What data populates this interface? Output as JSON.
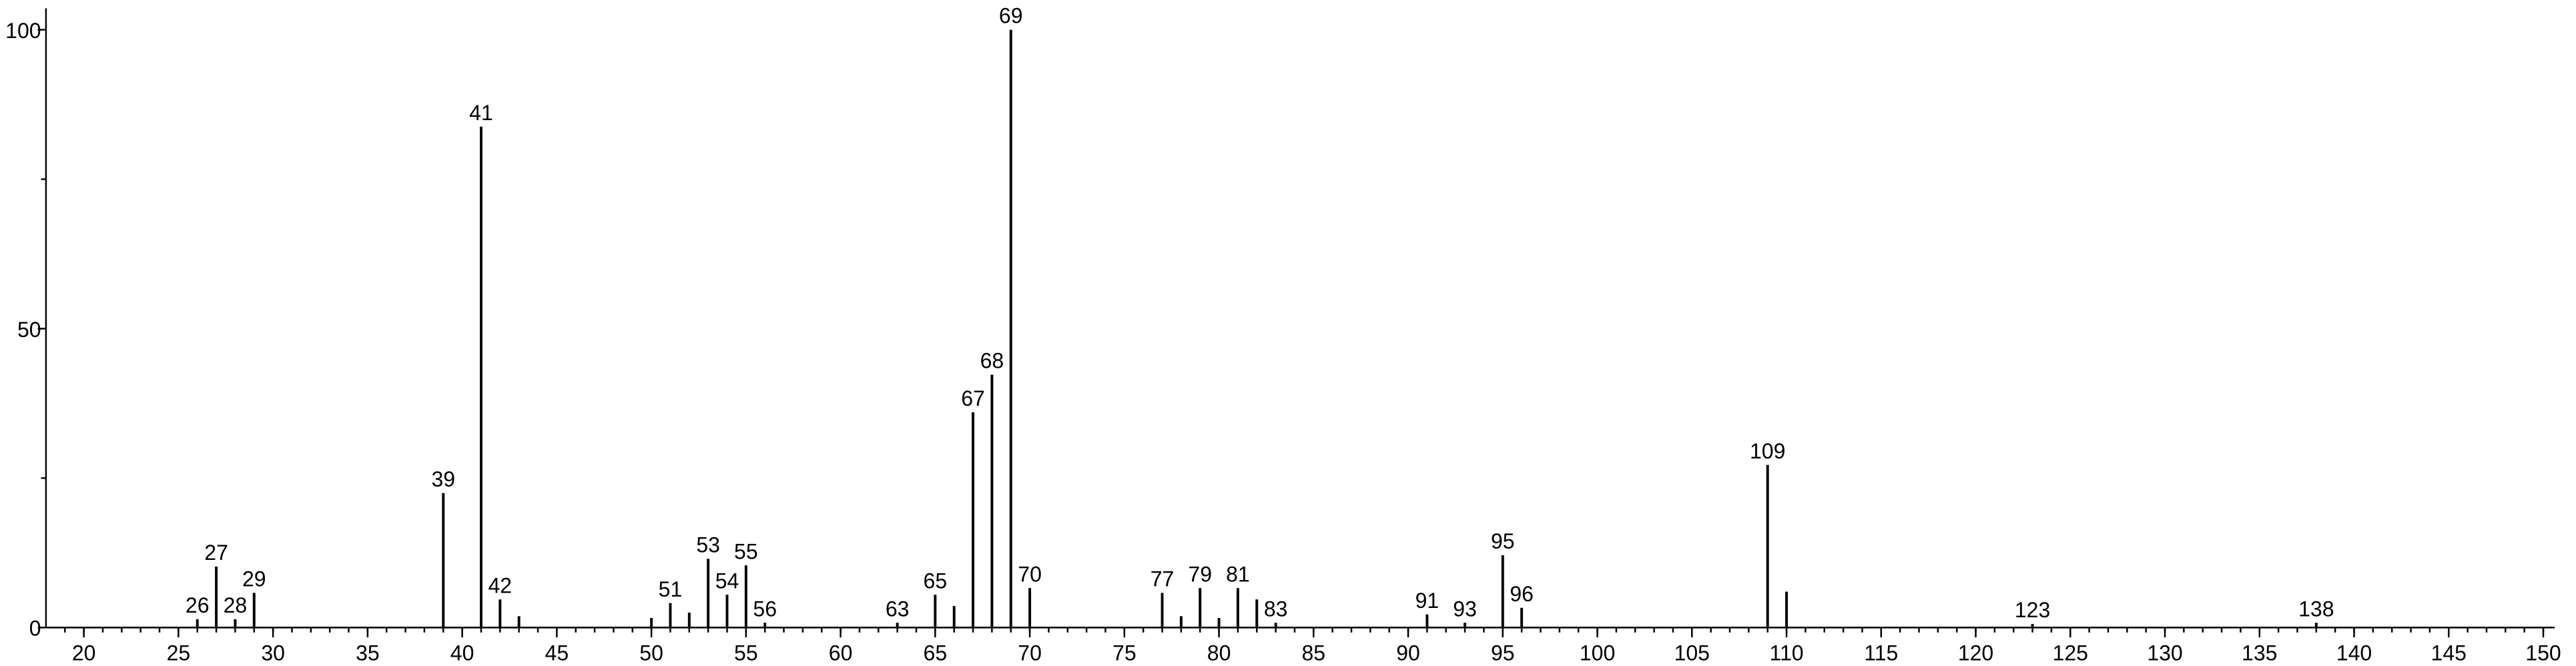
{
  "chart_data": {
    "type": "bar",
    "x": [
      26,
      27,
      28,
      29,
      39,
      41,
      42,
      43,
      50,
      51,
      52,
      53,
      54,
      55,
      56,
      63,
      65,
      66,
      67,
      68,
      69,
      70,
      77,
      78,
      79,
      80,
      81,
      82,
      83,
      91,
      93,
      95,
      96,
      109,
      110,
      123,
      138
    ],
    "values": [
      1.4,
      10.2,
      1.4,
      5.8,
      22.5,
      83.8,
      4.7,
      1.9,
      1.6,
      4.1,
      2.5,
      11.5,
      5.5,
      10.4,
      0.8,
      0.8,
      5.5,
      3.6,
      36,
      42.3,
      100,
      6.6,
      5.8,
      1.9,
      6.6,
      1.6,
      6.6,
      4.7,
      0.8,
      2.2,
      0.8,
      12.1,
      3.3,
      27.2,
      6,
      0.6,
      0.8
    ],
    "labels": [
      26,
      27,
      28,
      29,
      39,
      41,
      42,
      null,
      null,
      51,
      null,
      53,
      54,
      55,
      56,
      63,
      65,
      null,
      67,
      68,
      69,
      70,
      77,
      null,
      79,
      null,
      81,
      null,
      83,
      91,
      93,
      95,
      96,
      109,
      null,
      123,
      138
    ],
    "color": "#000000",
    "xlim": [
      18,
      150.6
    ],
    "ylim": [
      0,
      103.6
    ],
    "xticks": [
      20,
      25,
      30,
      35,
      40,
      45,
      50,
      55,
      60,
      65,
      70,
      75,
      80,
      85,
      90,
      95,
      100,
      105,
      110,
      115,
      120,
      125,
      130,
      135,
      140,
      145,
      150
    ],
    "xticks_minor": [
      19,
      20,
      21,
      22,
      23,
      24,
      25,
      26,
      27,
      28,
      29,
      30,
      31,
      32,
      33,
      34,
      35,
      36,
      37,
      38,
      39,
      40,
      41,
      42,
      43,
      44,
      45,
      46,
      47,
      48,
      49,
      50,
      51,
      52,
      53,
      54,
      55,
      56,
      57,
      58,
      59,
      60,
      61,
      62,
      63,
      64,
      65,
      66,
      67,
      68,
      69,
      70,
      71,
      72,
      73,
      74,
      75,
      76,
      77,
      78,
      79,
      80,
      81,
      82,
      83,
      84,
      85,
      86,
      87,
      88,
      89,
      90,
      91,
      92,
      93,
      94,
      95,
      96,
      97,
      98,
      99,
      100,
      101,
      102,
      103,
      104,
      105,
      106,
      107,
      108,
      109,
      110,
      111,
      112,
      113,
      114,
      115,
      116,
      117,
      118,
      119,
      120,
      121,
      122,
      123,
      124,
      125,
      126,
      127,
      128,
      129,
      130,
      131,
      132,
      133,
      134,
      135,
      136,
      137,
      138,
      139,
      140,
      141,
      142,
      143,
      144,
      145,
      146,
      147,
      148,
      149,
      150
    ],
    "yticks": [
      0,
      50,
      100
    ],
    "yticks_minor": [
      25,
      75
    ]
  }
}
